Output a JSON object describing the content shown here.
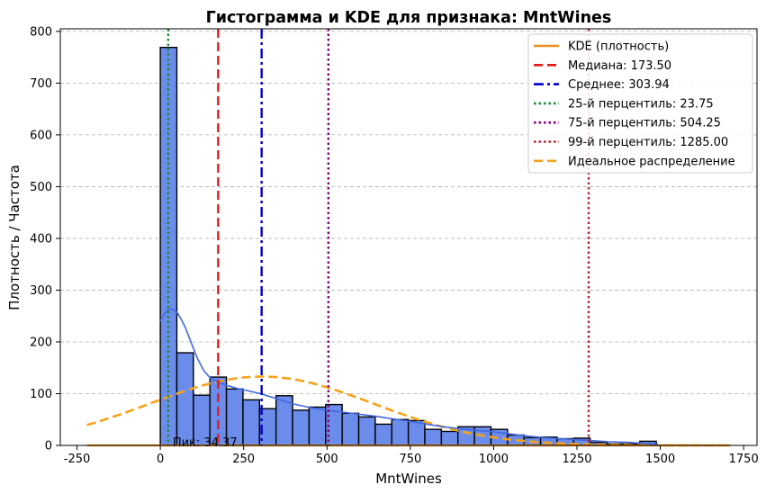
{
  "chart_data": {
    "type": "bar",
    "title": "Гистограмма и KDE для признака: MntWines",
    "xlabel": "MntWines",
    "ylabel": "Плотность / Частота",
    "xlim": [
      -300,
      1790
    ],
    "ylim": [
      0,
      805
    ],
    "xticks": [
      -250,
      0,
      250,
      500,
      750,
      1000,
      1250,
      1500,
      1750
    ],
    "yticks": [
      0,
      100,
      200,
      300,
      400,
      500,
      600,
      700,
      800
    ],
    "grid": "horizontal-dashed",
    "legend_position": "top-right",
    "histogram": {
      "bin_width": 49.6,
      "bins_start": 0,
      "color": "#6b8ceb",
      "edge_color": "#000000",
      "values": [
        769,
        179,
        97,
        132,
        109,
        88,
        71,
        96,
        68,
        74,
        79,
        62,
        55,
        41,
        50,
        48,
        31,
        27,
        36,
        36,
        31,
        20,
        15,
        16,
        13,
        14,
        6,
        3,
        3,
        8
      ]
    },
    "kde": {
      "name": "KDE (плотность)",
      "color": "#e8901c",
      "curve_color": "#4169e1",
      "x": [
        0,
        10,
        20,
        30,
        40,
        50,
        60,
        75,
        90,
        110,
        130,
        150,
        175,
        200,
        230,
        260,
        300,
        350,
        400,
        450,
        500,
        550,
        600,
        650,
        700,
        750,
        800,
        850,
        900,
        950,
        1000,
        1050,
        1100,
        1150,
        1200,
        1250,
        1300,
        1350,
        1400,
        1450,
        1493
      ],
      "y": [
        240,
        252,
        260,
        264,
        262,
        257,
        247,
        228,
        203,
        170,
        145,
        130,
        122,
        116,
        110,
        106,
        100,
        90,
        80,
        73,
        68,
        64,
        60,
        56,
        51,
        46,
        41,
        36,
        32,
        29,
        26,
        22,
        18,
        15,
        13,
        11,
        9,
        7,
        6,
        4,
        2
      ]
    },
    "ideal": {
      "name": "Идеальное распределение",
      "color": "#f5a31a",
      "x_start": -220,
      "x_end": 1710,
      "mean": 303.94,
      "peak": 133,
      "sigma": 336
    },
    "vlines": [
      {
        "name": "Медиана: 173.50",
        "x": 173.5,
        "color": "#e31a1c",
        "style": "dashed"
      },
      {
        "name": "Среднее: 303.94",
        "x": 303.94,
        "color": "#0000cd",
        "style": "dashdot"
      },
      {
        "name": "25-й перцентиль: 23.75",
        "x": 23.75,
        "color": "#1a8a2a",
        "style": "dotted"
      },
      {
        "name": "75-й перцентиль: 504.25",
        "x": 504.25,
        "color": "#800080",
        "style": "dotted"
      },
      {
        "name": "99-й перцентиль: 1285.00",
        "x": 1285,
        "color": "#b22234",
        "style": "dotted"
      }
    ],
    "annotation": {
      "text": "Пик: 34.37",
      "x": 34.37,
      "y": 0
    }
  }
}
